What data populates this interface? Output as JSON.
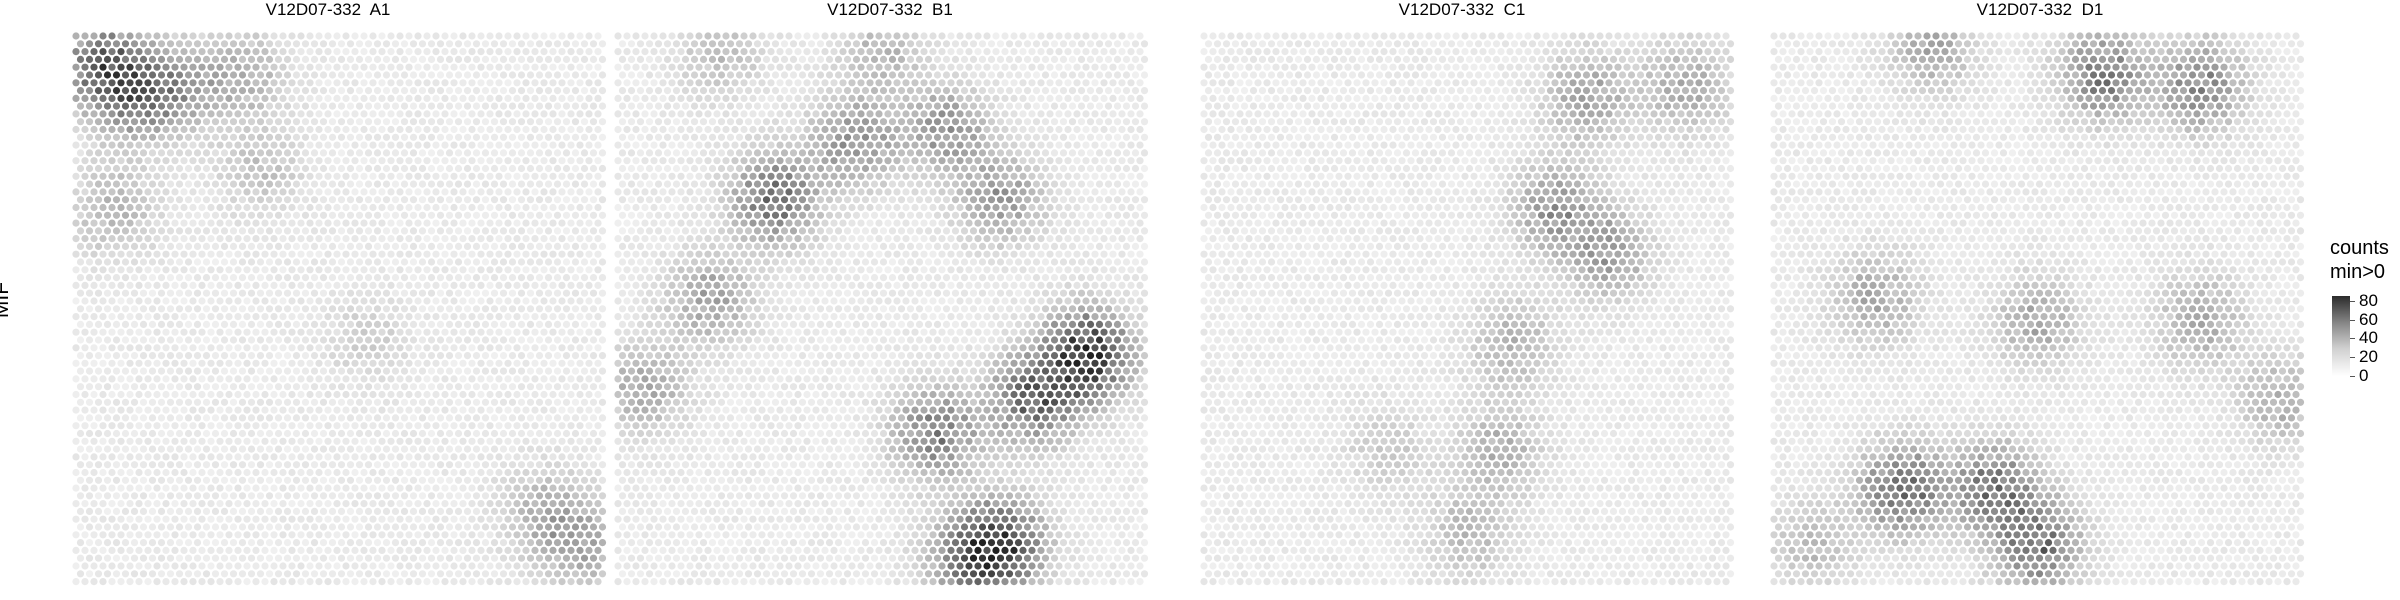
{
  "chart_data": {
    "type": "heatmap",
    "ylabel": "MIF",
    "panels": [
      {
        "title": "V12D07-332  A1",
        "hotspots": [
          {
            "x": 0.06,
            "y": 0.06,
            "v": 55
          },
          {
            "x": 0.12,
            "y": 0.12,
            "v": 42
          },
          {
            "x": 0.2,
            "y": 0.1,
            "v": 30
          },
          {
            "x": 0.32,
            "y": 0.08,
            "v": 25
          },
          {
            "x": 0.08,
            "y": 0.32,
            "v": 25
          },
          {
            "x": 0.88,
            "y": 0.86,
            "v": 25
          },
          {
            "x": 0.95,
            "y": 0.92,
            "v": 28
          },
          {
            "x": 0.35,
            "y": 0.25,
            "v": 18
          },
          {
            "x": 0.55,
            "y": 0.55,
            "v": 12
          }
        ]
      },
      {
        "title": "V12D07-332  B1",
        "hotspots": [
          {
            "x": 0.3,
            "y": 0.3,
            "v": 55
          },
          {
            "x": 0.45,
            "y": 0.2,
            "v": 40
          },
          {
            "x": 0.62,
            "y": 0.18,
            "v": 38
          },
          {
            "x": 0.72,
            "y": 0.3,
            "v": 35
          },
          {
            "x": 0.18,
            "y": 0.48,
            "v": 32
          },
          {
            "x": 0.06,
            "y": 0.64,
            "v": 28
          },
          {
            "x": 0.88,
            "y": 0.58,
            "v": 82
          },
          {
            "x": 0.78,
            "y": 0.66,
            "v": 60
          },
          {
            "x": 0.6,
            "y": 0.72,
            "v": 50
          },
          {
            "x": 0.72,
            "y": 0.92,
            "v": 70
          },
          {
            "x": 0.66,
            "y": 0.95,
            "v": 45
          },
          {
            "x": 0.2,
            "y": 0.04,
            "v": 20
          },
          {
            "x": 0.5,
            "y": 0.04,
            "v": 22
          }
        ]
      },
      {
        "title": "V12D07-332  C1",
        "hotspots": [
          {
            "x": 0.72,
            "y": 0.12,
            "v": 32
          },
          {
            "x": 0.9,
            "y": 0.1,
            "v": 30
          },
          {
            "x": 0.66,
            "y": 0.32,
            "v": 38
          },
          {
            "x": 0.76,
            "y": 0.4,
            "v": 34
          },
          {
            "x": 0.58,
            "y": 0.56,
            "v": 25
          },
          {
            "x": 0.56,
            "y": 0.75,
            "v": 25
          },
          {
            "x": 0.5,
            "y": 0.9,
            "v": 22
          },
          {
            "x": 0.35,
            "y": 0.75,
            "v": 15
          }
        ]
      },
      {
        "title": "V12D07-332  D1",
        "hotspots": [
          {
            "x": 0.62,
            "y": 0.08,
            "v": 50
          },
          {
            "x": 0.8,
            "y": 0.1,
            "v": 45
          },
          {
            "x": 0.3,
            "y": 0.03,
            "v": 30
          },
          {
            "x": 0.2,
            "y": 0.48,
            "v": 30
          },
          {
            "x": 0.5,
            "y": 0.52,
            "v": 30
          },
          {
            "x": 0.8,
            "y": 0.52,
            "v": 30
          },
          {
            "x": 0.95,
            "y": 0.66,
            "v": 25
          },
          {
            "x": 0.25,
            "y": 0.82,
            "v": 58
          },
          {
            "x": 0.42,
            "y": 0.82,
            "v": 52
          },
          {
            "x": 0.5,
            "y": 0.92,
            "v": 55
          },
          {
            "x": 0.08,
            "y": 0.92,
            "v": 20
          }
        ]
      }
    ],
    "legend": {
      "title_line1": "counts",
      "title_line2": "min>0",
      "ticks": [
        "80",
        "60",
        "40",
        "20",
        "0"
      ],
      "tick_values": [
        80,
        60,
        40,
        20,
        0
      ],
      "range": [
        0,
        85
      ]
    }
  }
}
